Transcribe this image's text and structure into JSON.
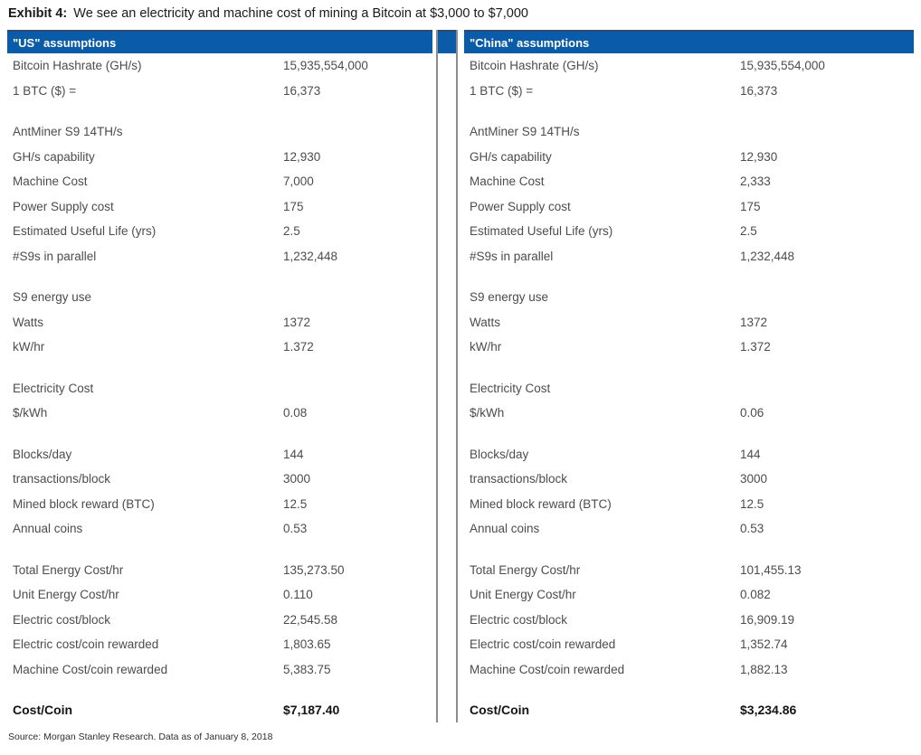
{
  "page": {
    "title_prefix": "Exhibit 4:",
    "title_text": "We see an electricity and machine cost of mining a Bitcoin at $3,000 to $7,000",
    "source": "Source: Morgan Stanley Research. Data as of January 8, 2018"
  },
  "colors": {
    "header_blue": "#0a5ca8",
    "header_top_edge": "#2b4a6d",
    "divider_gray": "#8c8c8c",
    "body_text": "#4c4c4c",
    "strong_text": "#141414"
  },
  "table": {
    "us_header": "\"US\" assumptions",
    "china_header": "\"China\" assumptions",
    "rows": [
      {
        "kind": "data",
        "label": "Bitcoin Hashrate (GH/s)",
        "us": "15,935,554,000",
        "china": "15,935,554,000"
      },
      {
        "kind": "data",
        "label": "1 BTC ($) =",
        "us": "16,373",
        "china": "16,373"
      },
      {
        "kind": "spacer"
      },
      {
        "kind": "section",
        "label": "AntMiner S9 14TH/s",
        "us": "",
        "china": ""
      },
      {
        "kind": "data",
        "label": "GH/s capability",
        "us": "12,930",
        "china": "12,930"
      },
      {
        "kind": "data",
        "label": "Machine Cost",
        "us": "7,000",
        "china": "2,333"
      },
      {
        "kind": "data",
        "label": "Power Supply cost",
        "us": "175",
        "china": "175"
      },
      {
        "kind": "data",
        "label": "Estimated Useful Life (yrs)",
        "us": "2.5",
        "china": "2.5"
      },
      {
        "kind": "data",
        "label": "#S9s in parallel",
        "us": "1,232,448",
        "china": "1,232,448"
      },
      {
        "kind": "spacer"
      },
      {
        "kind": "section",
        "label": "S9 energy use",
        "us": "",
        "china": ""
      },
      {
        "kind": "data",
        "label": "Watts",
        "us": "1372",
        "china": "1372"
      },
      {
        "kind": "data",
        "label": "kW/hr",
        "us": "1.372",
        "china": "1.372"
      },
      {
        "kind": "spacer"
      },
      {
        "kind": "section",
        "label": "Electricity Cost",
        "us": "",
        "china": ""
      },
      {
        "kind": "data",
        "label": "$/kWh",
        "us": "0.08",
        "china": "0.06"
      },
      {
        "kind": "spacer"
      },
      {
        "kind": "data",
        "label": "Blocks/day",
        "us": "144",
        "china": "144"
      },
      {
        "kind": "data",
        "label": "transactions/block",
        "us": "3000",
        "china": "3000"
      },
      {
        "kind": "data",
        "label": "Mined block reward (BTC)",
        "us": "12.5",
        "china": "12.5"
      },
      {
        "kind": "data",
        "label": "Annual coins",
        "us": "0.53",
        "china": "0.53"
      },
      {
        "kind": "spacer"
      },
      {
        "kind": "data",
        "label": "Total Energy Cost/hr",
        "us": "135,273.50",
        "china": "101,455.13"
      },
      {
        "kind": "data",
        "label": "Unit Energy Cost/hr",
        "us": "0.110",
        "china": "0.082"
      },
      {
        "kind": "data",
        "label": "Electric cost/block",
        "us": "22,545.58",
        "china": "16,909.19"
      },
      {
        "kind": "data",
        "label": "Electric cost/coin rewarded",
        "us": "1,803.65",
        "china": "1,352.74"
      },
      {
        "kind": "data",
        "label": "Machine Cost/coin rewarded",
        "us": "5,383.75",
        "china": "1,882.13"
      },
      {
        "kind": "spacer_total"
      },
      {
        "kind": "total",
        "label": "Cost/Coin",
        "us": "$7,187.40",
        "china": "$3,234.86"
      }
    ]
  }
}
